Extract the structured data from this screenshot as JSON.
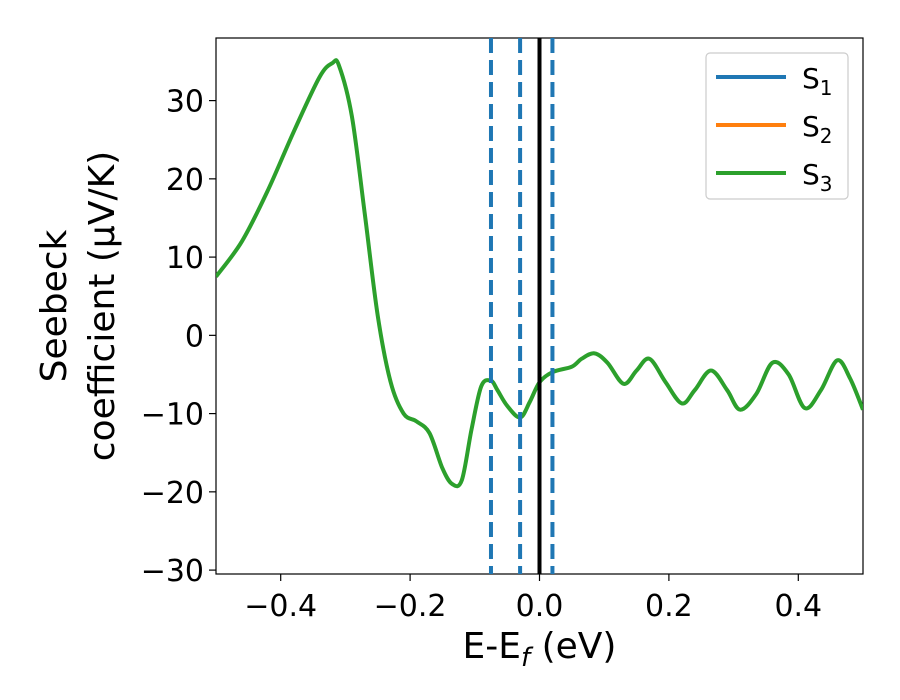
{
  "chart_data": {
    "type": "line",
    "xlabel": "E-E_f (eV)",
    "ylabel_line1": "Seebeck",
    "ylabel_line2": "coefficient (μV/K)",
    "xlim": [
      -0.5,
      0.5
    ],
    "ylim": [
      -30.5,
      38
    ],
    "xticks": [
      -0.4,
      -0.2,
      0.0,
      0.2,
      0.4
    ],
    "xtick_labels": [
      "−0.4",
      "−0.2",
      "0.0",
      "0.2",
      "0.4"
    ],
    "yticks": [
      -30,
      -20,
      -10,
      0,
      10,
      20,
      30
    ],
    "ytick_labels": [
      "−30",
      "−20",
      "−10",
      "0",
      "10",
      "20",
      "30"
    ],
    "legend_placement": "top-right",
    "grid": false,
    "colors": {
      "S1": "#1f77b4",
      "S2": "#ff7f0e",
      "S3": "#2ca02c",
      "fermi": "#000000",
      "dashed": "#1f77b4"
    },
    "series": [
      {
        "name": "S1",
        "base": "S",
        "sub": "1",
        "color": "#1f77b4",
        "x": [],
        "y": []
      },
      {
        "name": "S2",
        "base": "S",
        "sub": "2",
        "color": "#ff7f0e",
        "x": [],
        "y": []
      },
      {
        "name": "S3",
        "base": "S",
        "sub": "3",
        "color": "#2ca02c",
        "x": [
          -0.5,
          -0.46,
          -0.42,
          -0.38,
          -0.34,
          -0.32,
          -0.31,
          -0.29,
          -0.27,
          -0.25,
          -0.23,
          -0.21,
          -0.19,
          -0.17,
          -0.15,
          -0.135,
          -0.12,
          -0.105,
          -0.09,
          -0.075,
          -0.065,
          -0.05,
          -0.03,
          -0.015,
          0.0,
          0.02,
          0.05,
          0.065,
          0.085,
          0.105,
          0.13,
          0.15,
          0.17,
          0.195,
          0.22,
          0.24,
          0.265,
          0.29,
          0.31,
          0.335,
          0.36,
          0.385,
          0.41,
          0.435,
          0.46,
          0.48,
          0.5
        ],
        "y": [
          7.5,
          12.0,
          18.5,
          26.0,
          33.0,
          34.8,
          34.5,
          28.0,
          15.5,
          2.5,
          -6.0,
          -10.0,
          -11.0,
          -12.5,
          -17.0,
          -19.0,
          -18.5,
          -12.0,
          -6.5,
          -5.8,
          -7.0,
          -9.0,
          -10.5,
          -8.5,
          -6.0,
          -4.7,
          -4.0,
          -3.0,
          -2.3,
          -3.5,
          -6.2,
          -4.5,
          -3.0,
          -6.0,
          -8.7,
          -7.0,
          -4.5,
          -7.0,
          -9.5,
          -7.5,
          -3.5,
          -5.0,
          -9.3,
          -7.0,
          -3.2,
          -5.5,
          -9.5
        ]
      }
    ],
    "vlines": [
      {
        "x": -0.075,
        "style": "dashed",
        "color": "#1f77b4"
      },
      {
        "x": -0.03,
        "style": "dashed",
        "color": "#1f77b4"
      },
      {
        "x": 0.0,
        "style": "solid",
        "color": "#000000"
      },
      {
        "x": 0.02,
        "style": "dashed",
        "color": "#1f77b4"
      }
    ]
  }
}
